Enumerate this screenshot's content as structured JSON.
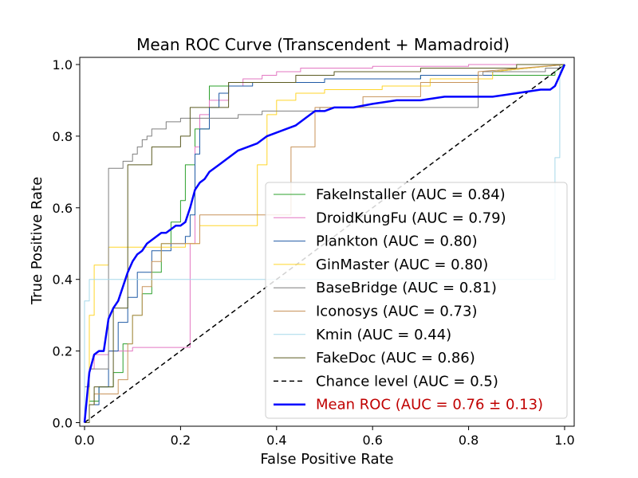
{
  "chart_data": {
    "type": "line",
    "title": "Mean ROC Curve (Transcendent + Mamadroid)",
    "xlabel": "False Positive Rate",
    "ylabel": "True Positive Rate",
    "xlim": [
      -0.01,
      1.02
    ],
    "ylim": [
      -0.01,
      1.02
    ],
    "xticks": [
      0.0,
      0.2,
      0.4,
      0.6,
      0.8,
      1.0
    ],
    "yticks": [
      0.0,
      0.2,
      0.4,
      0.6,
      0.8,
      1.0
    ],
    "xtick_labels": [
      "0.0",
      "0.2",
      "0.4",
      "0.6",
      "0.8",
      "1.0"
    ],
    "ytick_labels": [
      "0.0",
      "0.2",
      "0.4",
      "0.6",
      "0.8",
      "1.0"
    ],
    "legend_position": "lower-right",
    "series": [
      {
        "name": "FakeInstaller (AUC = 0.84)",
        "color": "#2ca02c",
        "width": 1,
        "dash": "",
        "x": [
          0.0,
          0.01,
          0.01,
          0.03,
          0.03,
          0.06,
          0.06,
          0.08,
          0.08,
          0.1,
          0.1,
          0.12,
          0.12,
          0.14,
          0.14,
          0.16,
          0.16,
          0.18,
          0.18,
          0.2,
          0.2,
          0.21,
          0.21,
          0.23,
          0.23,
          0.26,
          0.26,
          0.3,
          0.3,
          0.5,
          0.5,
          0.7,
          0.7,
          0.98,
          0.98,
          1.0
        ],
        "y": [
          0.0,
          0.0,
          0.06,
          0.06,
          0.1,
          0.1,
          0.14,
          0.14,
          0.22,
          0.22,
          0.3,
          0.3,
          0.36,
          0.36,
          0.42,
          0.42,
          0.5,
          0.5,
          0.56,
          0.56,
          0.62,
          0.62,
          0.72,
          0.72,
          0.82,
          0.82,
          0.94,
          0.94,
          0.95,
          0.95,
          0.96,
          0.96,
          0.97,
          0.97,
          0.98,
          1.0
        ]
      },
      {
        "name": "DroidKungFu (AUC = 0.79)",
        "color": "#e377c2",
        "width": 1,
        "dash": "",
        "x": [
          0.0,
          0.01,
          0.01,
          0.02,
          0.02,
          0.05,
          0.05,
          0.1,
          0.1,
          0.22,
          0.22,
          0.23,
          0.23,
          0.24,
          0.24,
          0.26,
          0.26,
          0.3,
          0.3,
          0.33,
          0.33,
          0.37,
          0.37,
          0.4,
          0.4,
          0.45,
          0.45,
          0.6,
          0.6,
          0.8,
          0.8,
          1.0
        ],
        "y": [
          0.0,
          0.0,
          0.15,
          0.15,
          0.19,
          0.19,
          0.2,
          0.2,
          0.21,
          0.21,
          0.5,
          0.5,
          0.77,
          0.77,
          0.86,
          0.86,
          0.9,
          0.9,
          0.94,
          0.94,
          0.96,
          0.96,
          0.97,
          0.97,
          0.98,
          0.98,
          0.99,
          0.99,
          0.995,
          0.995,
          1.0,
          1.0
        ]
      },
      {
        "name": "Plankton (AUC = 0.80)",
        "color": "#1f5aa5",
        "width": 1,
        "dash": "",
        "x": [
          0.0,
          0.01,
          0.01,
          0.03,
          0.03,
          0.05,
          0.05,
          0.07,
          0.07,
          0.09,
          0.09,
          0.11,
          0.11,
          0.14,
          0.14,
          0.18,
          0.18,
          0.21,
          0.21,
          0.22,
          0.22,
          0.23,
          0.23,
          0.24,
          0.24,
          0.26,
          0.26,
          0.28,
          0.28,
          0.3,
          0.3,
          0.35,
          0.35,
          0.5,
          0.5,
          0.7,
          0.7,
          0.85,
          0.85,
          1.0
        ],
        "y": [
          0.0,
          0.0,
          0.05,
          0.05,
          0.1,
          0.1,
          0.2,
          0.2,
          0.28,
          0.28,
          0.35,
          0.35,
          0.42,
          0.42,
          0.48,
          0.48,
          0.5,
          0.5,
          0.52,
          0.52,
          0.58,
          0.58,
          0.75,
          0.75,
          0.82,
          0.82,
          0.88,
          0.88,
          0.92,
          0.92,
          0.94,
          0.94,
          0.95,
          0.95,
          0.96,
          0.96,
          0.97,
          0.97,
          0.98,
          1.0
        ]
      },
      {
        "name": "GinMaster (AUC = 0.80)",
        "color": "#ffd62a",
        "width": 1,
        "dash": "",
        "x": [
          0.0,
          0.01,
          0.01,
          0.02,
          0.02,
          0.05,
          0.05,
          0.21,
          0.21,
          0.24,
          0.24,
          0.36,
          0.36,
          0.38,
          0.38,
          0.4,
          0.4,
          0.44,
          0.44,
          0.5,
          0.5,
          0.62,
          0.62,
          0.72,
          0.72,
          0.85,
          0.85,
          1.0
        ],
        "y": [
          0.0,
          0.0,
          0.3,
          0.3,
          0.44,
          0.44,
          0.49,
          0.49,
          0.5,
          0.5,
          0.55,
          0.55,
          0.72,
          0.72,
          0.86,
          0.86,
          0.9,
          0.9,
          0.92,
          0.92,
          0.93,
          0.93,
          0.94,
          0.94,
          0.96,
          0.96,
          0.98,
          1.0
        ]
      },
      {
        "name": "BaseBridge (AUC = 0.81)",
        "color": "#7f7f7f",
        "width": 1,
        "dash": "",
        "x": [
          0.0,
          0.0,
          0.01,
          0.01,
          0.05,
          0.05,
          0.08,
          0.08,
          0.1,
          0.1,
          0.11,
          0.11,
          0.12,
          0.12,
          0.13,
          0.13,
          0.14,
          0.14,
          0.17,
          0.17,
          0.2,
          0.2,
          0.32,
          0.32,
          0.37,
          0.37,
          0.49,
          0.49,
          0.82,
          0.82,
          0.83,
          0.83,
          0.96,
          0.96,
          0.99,
          0.99,
          1.0
        ],
        "y": [
          0.0,
          0.1,
          0.1,
          0.15,
          0.15,
          0.71,
          0.71,
          0.73,
          0.73,
          0.75,
          0.75,
          0.77,
          0.77,
          0.79,
          0.79,
          0.8,
          0.8,
          0.82,
          0.82,
          0.84,
          0.84,
          0.85,
          0.85,
          0.86,
          0.86,
          0.87,
          0.87,
          0.88,
          0.88,
          0.97,
          0.97,
          0.98,
          0.98,
          0.99,
          0.99,
          1.0,
          1.0
        ]
      },
      {
        "name": "Iconosys (AUC = 0.73)",
        "color": "#c8935a",
        "width": 1,
        "dash": "",
        "x": [
          0.0,
          0.01,
          0.01,
          0.02,
          0.02,
          0.07,
          0.07,
          0.09,
          0.09,
          0.1,
          0.1,
          0.12,
          0.12,
          0.14,
          0.14,
          0.16,
          0.16,
          0.24,
          0.24,
          0.43,
          0.43,
          0.48,
          0.48,
          0.58,
          0.58,
          0.7,
          0.7,
          0.82,
          0.82,
          1.0
        ],
        "y": [
          0.0,
          0.0,
          0.05,
          0.05,
          0.08,
          0.08,
          0.12,
          0.12,
          0.22,
          0.22,
          0.3,
          0.3,
          0.38,
          0.38,
          0.45,
          0.45,
          0.5,
          0.5,
          0.58,
          0.58,
          0.77,
          0.77,
          0.88,
          0.88,
          0.91,
          0.91,
          0.95,
          0.95,
          0.98,
          1.0
        ]
      },
      {
        "name": "Kmin (AUC = 0.44)",
        "color": "#a6d8ea",
        "width": 1,
        "dash": "",
        "x": [
          0.0,
          0.0,
          0.01,
          0.01,
          0.98,
          0.98,
          0.99,
          0.99,
          1.0
        ],
        "y": [
          0.0,
          0.34,
          0.34,
          0.4,
          0.4,
          0.74,
          0.74,
          0.98,
          1.0
        ]
      },
      {
        "name": "FakeDoc (AUC = 0.86)",
        "color": "#5b5b22",
        "width": 1,
        "dash": "",
        "x": [
          0.0,
          0.01,
          0.01,
          0.02,
          0.02,
          0.06,
          0.06,
          0.09,
          0.09,
          0.14,
          0.14,
          0.2,
          0.2,
          0.22,
          0.22,
          0.3,
          0.3,
          0.44,
          0.44,
          0.52,
          0.52,
          0.7,
          0.7,
          0.9,
          0.9,
          1.0
        ],
        "y": [
          0.0,
          0.0,
          0.05,
          0.05,
          0.1,
          0.1,
          0.32,
          0.32,
          0.72,
          0.72,
          0.77,
          0.77,
          0.8,
          0.8,
          0.88,
          0.88,
          0.95,
          0.95,
          0.97,
          0.97,
          0.98,
          0.98,
          0.99,
          0.99,
          1.0,
          1.0
        ]
      },
      {
        "name": "Chance level (AUC = 0.5)",
        "color": "#000000",
        "width": 1.5,
        "dash": "6,4",
        "x": [
          0.0,
          1.0
        ],
        "y": [
          0.0,
          1.0
        ]
      },
      {
        "name": "Mean ROC (AUC = 0.76 ± 0.13)",
        "color": "#0000ff",
        "width": 2.5,
        "dash": "",
        "label_color": "#c00000",
        "x": [
          0.0,
          0.01,
          0.02,
          0.03,
          0.04,
          0.05,
          0.06,
          0.07,
          0.08,
          0.09,
          0.1,
          0.11,
          0.12,
          0.13,
          0.14,
          0.15,
          0.16,
          0.17,
          0.18,
          0.19,
          0.2,
          0.21,
          0.22,
          0.23,
          0.24,
          0.25,
          0.26,
          0.28,
          0.3,
          0.32,
          0.34,
          0.36,
          0.38,
          0.4,
          0.42,
          0.44,
          0.46,
          0.48,
          0.5,
          0.52,
          0.54,
          0.56,
          0.6,
          0.65,
          0.7,
          0.75,
          0.8,
          0.85,
          0.9,
          0.95,
          0.97,
          0.98,
          1.0
        ],
        "y": [
          0.0,
          0.14,
          0.19,
          0.2,
          0.2,
          0.29,
          0.32,
          0.34,
          0.38,
          0.42,
          0.45,
          0.47,
          0.48,
          0.5,
          0.51,
          0.52,
          0.53,
          0.53,
          0.54,
          0.55,
          0.55,
          0.56,
          0.6,
          0.65,
          0.67,
          0.68,
          0.7,
          0.72,
          0.74,
          0.76,
          0.77,
          0.78,
          0.8,
          0.81,
          0.82,
          0.83,
          0.85,
          0.87,
          0.87,
          0.88,
          0.88,
          0.88,
          0.89,
          0.9,
          0.9,
          0.91,
          0.91,
          0.91,
          0.92,
          0.93,
          0.93,
          0.94,
          1.0
        ]
      }
    ]
  }
}
